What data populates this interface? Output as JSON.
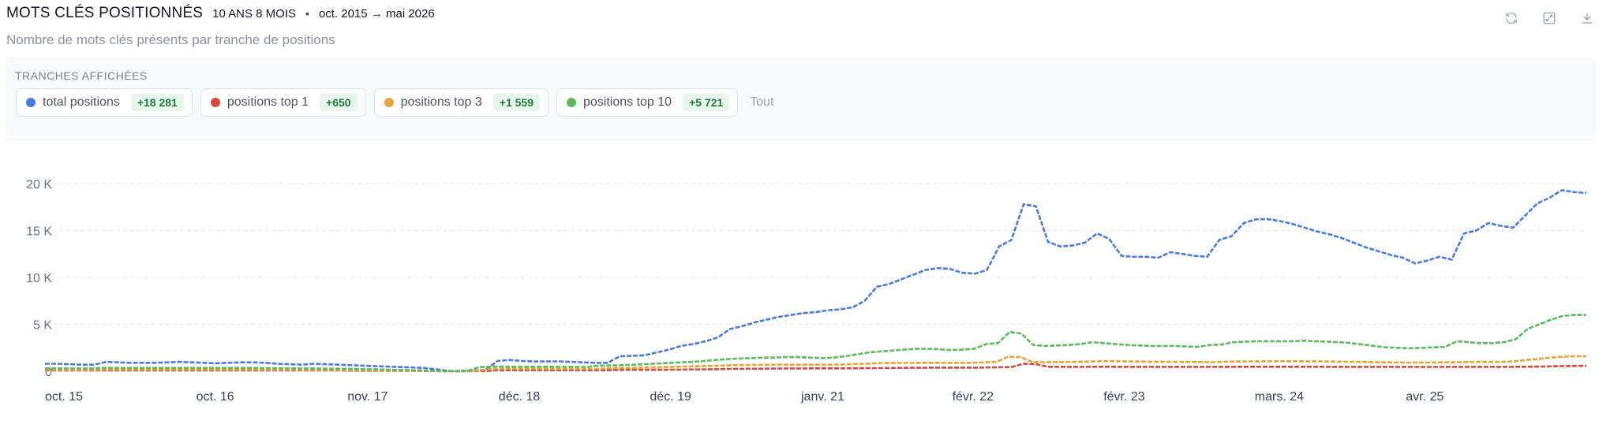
{
  "header": {
    "title": "MOTS CLÉS POSITIONNÉS",
    "period_length": "10 ANS 8 MOIS",
    "separator": "•",
    "period_range": "oct. 2015 → mai 2026",
    "subtitle": "Nombre de mots clés présents par tranche de positions"
  },
  "toolbar": {
    "icons": [
      "refresh-icon",
      "expand-icon",
      "download-icon"
    ]
  },
  "filters": {
    "label": "TRANCHES AFFICHÉES",
    "chips": [
      {
        "label": "total positions",
        "delta": "+18 281",
        "color": "#4a7bdc"
      },
      {
        "label": "positions top 1",
        "delta": "+650",
        "color": "#d9483b"
      },
      {
        "label": "positions top 3",
        "delta": "+1 559",
        "color": "#e8a23a"
      },
      {
        "label": "positions top 10",
        "delta": "+5 721",
        "color": "#5cba5f"
      }
    ],
    "all_label": "Tout"
  },
  "chart_data": {
    "type": "line",
    "x_start": "2015-10",
    "x_end": "2026-05",
    "x_ticks": [
      "oct. 15",
      "oct. 16",
      "nov. 17",
      "déc. 18",
      "déc. 19",
      "janv. 21",
      "févr. 22",
      "févr. 23",
      "mars. 24",
      "avr. 25"
    ],
    "y_ticks": [
      "0",
      "5 K",
      "10 K",
      "15 K",
      "20 K"
    ],
    "ylim": [
      0,
      20000
    ],
    "grid": true,
    "series": [
      {
        "name": "total positions",
        "color": "#4a7bdc",
        "values": [
          800,
          800,
          750,
          700,
          700,
          1000,
          950,
          900,
          900,
          900,
          950,
          1000,
          950,
          900,
          850,
          900,
          950,
          950,
          900,
          800,
          750,
          700,
          800,
          750,
          700,
          650,
          600,
          550,
          500,
          450,
          400,
          350,
          200,
          50,
          0,
          50,
          150,
          1100,
          1200,
          1100,
          1050,
          1050,
          1050,
          1000,
          950,
          900,
          900,
          1600,
          1650,
          1700,
          2000,
          2300,
          2700,
          2900,
          3200,
          3600,
          4500,
          4800,
          5200,
          5500,
          5800,
          6000,
          6200,
          6300,
          6500,
          6600,
          6800,
          7500,
          9000,
          9300,
          9800,
          10300,
          10800,
          11000,
          10900,
          10500,
          10400,
          10800,
          13300,
          14000,
          17800,
          17600,
          13800,
          13300,
          13400,
          13700,
          14700,
          14100,
          12300,
          12200,
          12200,
          12100,
          12700,
          12500,
          12300,
          12200,
          14000,
          14400,
          15800,
          16200,
          16200,
          16000,
          15700,
          15300,
          14900,
          14600,
          14200,
          13700,
          13200,
          12800,
          12400,
          12100,
          11500,
          11800,
          12200,
          11900,
          14700,
          15000,
          15800,
          15500,
          15300,
          16600,
          17900,
          18500,
          19300,
          19100,
          19000
        ]
      },
      {
        "name": "positions top 1",
        "color": "#d9483b",
        "values": [
          80,
          80,
          80,
          80,
          80,
          90,
          90,
          90,
          90,
          90,
          90,
          90,
          90,
          90,
          90,
          90,
          90,
          90,
          90,
          90,
          80,
          80,
          80,
          80,
          80,
          70,
          60,
          60,
          50,
          50,
          40,
          30,
          20,
          10,
          0,
          10,
          20,
          100,
          110,
          110,
          110,
          110,
          110,
          110,
          110,
          110,
          110,
          150,
          150,
          150,
          160,
          170,
          180,
          190,
          200,
          220,
          250,
          260,
          270,
          280,
          290,
          300,
          300,
          310,
          310,
          310,
          320,
          330,
          340,
          350,
          360,
          370,
          380,
          390,
          390,
          390,
          390,
          400,
          420,
          450,
          800,
          760,
          480,
          470,
          470,
          470,
          480,
          480,
          470,
          470,
          470,
          470,
          470,
          470,
          470,
          470,
          470,
          470,
          480,
          480,
          480,
          480,
          480,
          480,
          480,
          470,
          470,
          470,
          470,
          470,
          470,
          470,
          460,
          460,
          460,
          470,
          470,
          470,
          470,
          470,
          470,
          480,
          500,
          520,
          550,
          560,
          580
        ]
      },
      {
        "name": "positions top 3",
        "color": "#e8a23a",
        "values": [
          150,
          150,
          150,
          150,
          150,
          170,
          170,
          170,
          170,
          170,
          170,
          170,
          170,
          170,
          170,
          170,
          170,
          170,
          170,
          160,
          150,
          150,
          150,
          150,
          140,
          130,
          120,
          110,
          100,
          90,
          80,
          60,
          40,
          20,
          0,
          20,
          40,
          250,
          270,
          270,
          260,
          260,
          260,
          260,
          250,
          250,
          250,
          350,
          360,
          370,
          400,
          430,
          460,
          500,
          530,
          560,
          600,
          640,
          660,
          680,
          690,
          700,
          700,
          700,
          700,
          700,
          710,
          760,
          800,
          850,
          870,
          880,
          880,
          900,
          900,
          890,
          880,
          890,
          950,
          1000,
          1550,
          1500,
          1000,
          970,
          980,
          990,
          1020,
          1050,
          1080,
          1070,
          1050,
          1030,
          1020,
          1010,
          1000,
          990,
          980,
          970,
          1020,
          1030,
          1050,
          1060,
          1070,
          1070,
          1070,
          1060,
          1050,
          1030,
          1010,
          1000,
          980,
          960,
          940,
          930,
          920,
          930,
          950,
          960,
          980,
          1000,
          1000,
          1010,
          1050,
          1200,
          1300,
          1450,
          1550,
          1600,
          1600
        ]
      },
      {
        "name": "positions top 10",
        "color": "#5cba5f",
        "values": [
          300,
          300,
          300,
          300,
          300,
          350,
          350,
          350,
          350,
          350,
          350,
          350,
          350,
          350,
          350,
          350,
          350,
          350,
          350,
          330,
          310,
          300,
          300,
          290,
          280,
          270,
          250,
          230,
          200,
          180,
          150,
          120,
          80,
          30,
          0,
          30,
          80,
          450,
          500,
          500,
          480,
          480,
          480,
          480,
          470,
          460,
          450,
          600,
          620,
          650,
          700,
          760,
          820,
          880,
          950,
          1000,
          1100,
          1200,
          1300,
          1350,
          1400,
          1450,
          1450,
          1500,
          1500,
          1450,
          1400,
          1450,
          1600,
          1800,
          2000,
          2100,
          2200,
          2300,
          2400,
          2400,
          2350,
          2250,
          2300,
          2400,
          2900,
          3000,
          4200,
          4000,
          2800,
          2700,
          2750,
          2800,
          2900,
          3100,
          3000,
          2900,
          2800,
          2750,
          2700,
          2700,
          2700,
          2650,
          2600,
          2800,
          2850,
          3100,
          3150,
          3200,
          3200,
          3200,
          3200,
          3250,
          3200,
          3150,
          3100,
          3000,
          2850,
          2700,
          2550,
          2500,
          2450,
          2500,
          2550,
          2600,
          3200,
          3100,
          3000,
          3000,
          3100,
          3400,
          4500,
          5000,
          5500,
          5900,
          6000,
          6000
        ]
      }
    ]
  }
}
